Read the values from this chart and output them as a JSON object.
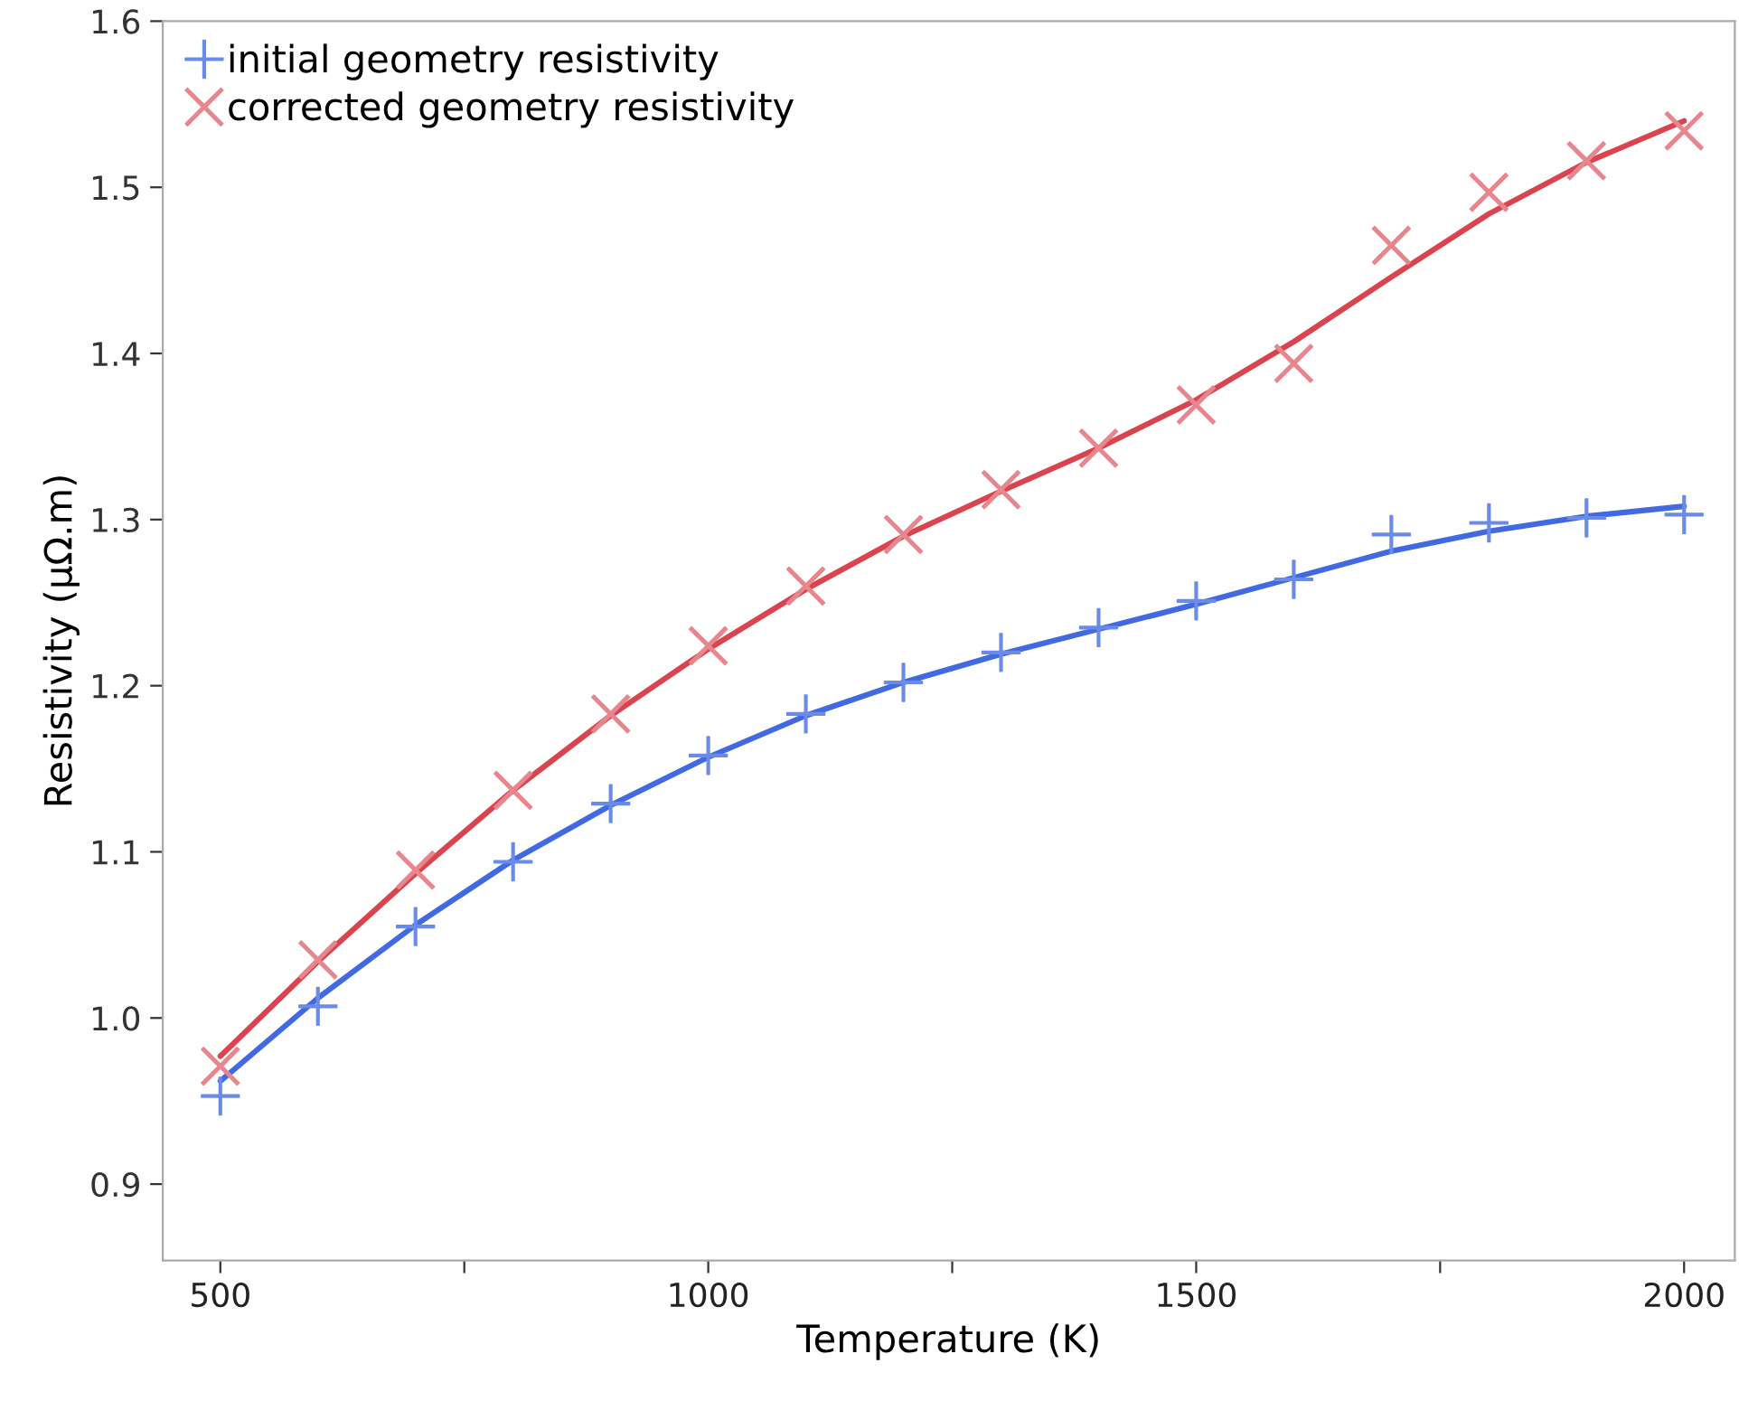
{
  "chart_data": {
    "type": "scatter",
    "xlabel": "Temperature (K)",
    "ylabel": "Resistivity (μΩ.m)",
    "x": [
      500,
      600,
      700,
      800,
      900,
      1000,
      1100,
      1200,
      1300,
      1400,
      1500,
      1600,
      1700,
      1800,
      1900,
      2000
    ],
    "series": [
      {
        "name": "initial geometry resistivity",
        "color": "#6a8be8",
        "marker": "cross",
        "values": [
          0.953,
          1.007,
          1.055,
          1.094,
          1.129,
          1.158,
          1.183,
          1.202,
          1.22,
          1.235,
          1.251,
          1.264,
          1.291,
          1.298,
          1.301,
          1.303
        ]
      },
      {
        "name": "corrected geometry resistivity",
        "color": "#e8868e",
        "marker": "x",
        "values": [
          0.971,
          1.035,
          1.089,
          1.137,
          1.183,
          1.224,
          1.26,
          1.291,
          1.318,
          1.343,
          1.369,
          1.394,
          1.465,
          1.497,
          1.516,
          1.534
        ]
      },
      {
        "type": "line",
        "color": "#4169e1",
        "marker": "none",
        "line_style": "solid",
        "x": [
          500,
          600,
          700,
          800,
          900,
          1000,
          1100,
          1200,
          1300,
          1400,
          1500,
          1600,
          1700,
          1800,
          1900,
          2000
        ],
        "values": [
          0.962,
          1.012,
          1.056,
          1.095,
          1.128,
          1.157,
          1.182,
          1.202,
          1.219,
          1.234,
          1.249,
          1.265,
          1.281,
          1.293,
          1.302,
          1.308
        ]
      },
      {
        "type": "line",
        "color": "#d9444f",
        "marker": "none",
        "line_style": "solid",
        "x": [
          500,
          600,
          700,
          800,
          900,
          1000,
          1100,
          1200,
          1300,
          1400,
          1500,
          1600,
          1700,
          1800,
          1900,
          2000
        ],
        "values": [
          0.977,
          1.034,
          1.087,
          1.137,
          1.182,
          1.222,
          1.258,
          1.29,
          1.317,
          1.343,
          1.372,
          1.407,
          1.446,
          1.484,
          1.515,
          1.54
        ]
      }
    ],
    "xlim": [
      441,
      2052
    ],
    "ylim": [
      0.854,
      1.6
    ],
    "xticks": [
      500,
      {
        "value": 750,
        "label": null
      },
      1000,
      {
        "value": 1250,
        "label": null
      },
      1500,
      {
        "value": 1750,
        "label": null
      },
      2000
    ],
    "yticks": [
      0.9,
      {
        "value": 1.0,
        "label": "1.0"
      },
      1.1,
      1.2,
      1.3,
      1.4,
      1.5,
      1.6
    ],
    "grid": false,
    "legend": "top left"
  }
}
